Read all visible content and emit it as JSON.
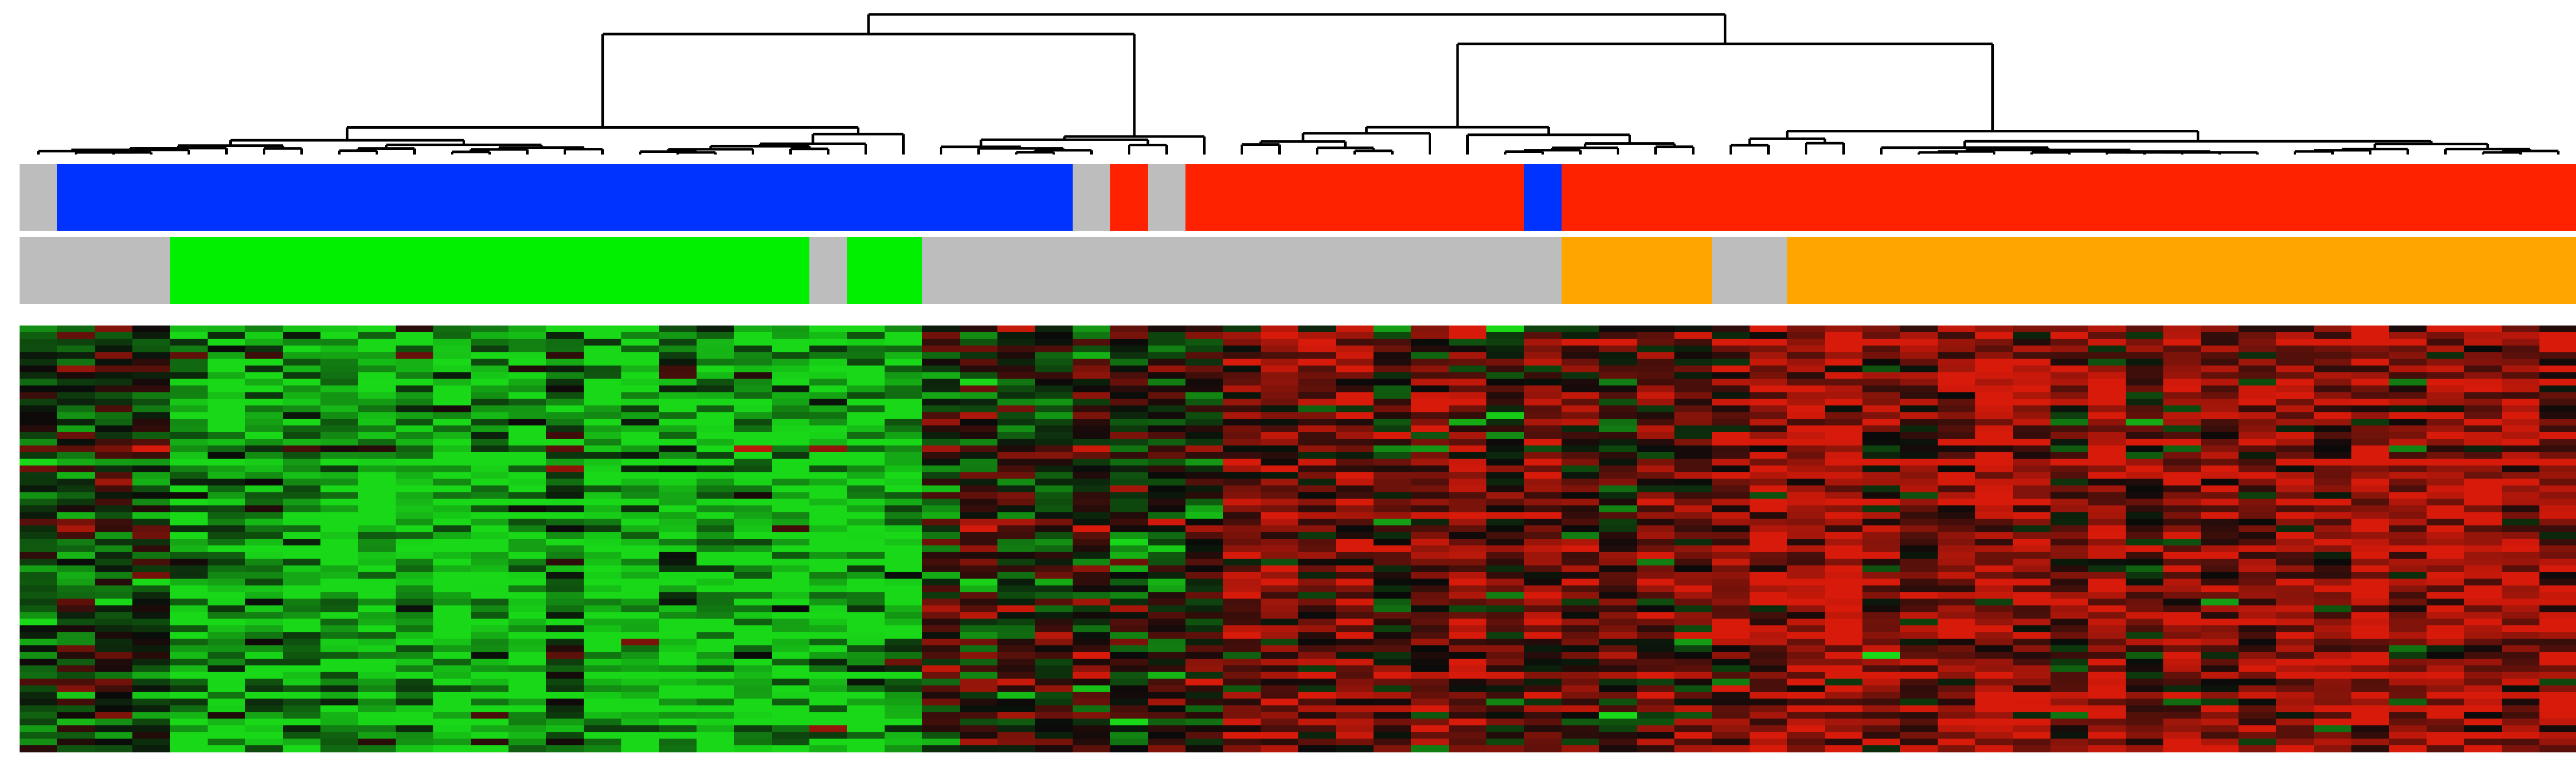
{
  "chart_data": {
    "type": "heatmap",
    "columns": 68,
    "rows": 64,
    "color_scale": {
      "low": "#18d818",
      "mid": "#0a0a0a",
      "high": "#d81a0a"
    },
    "annotation_colors": {
      "blue": "#0033ff",
      "red": "#ff2200",
      "gray": "#bdbdbd",
      "green": "#00f000",
      "orange": "#ffa500"
    },
    "annotation_tracks": [
      {
        "segments": [
          {
            "color": "gray",
            "from": 0,
            "to": 1
          },
          {
            "color": "blue",
            "from": 1,
            "to": 28
          },
          {
            "color": "gray",
            "from": 28,
            "to": 29
          },
          {
            "color": "red",
            "from": 29,
            "to": 30
          },
          {
            "color": "gray",
            "from": 30,
            "to": 31
          },
          {
            "color": "red",
            "from": 31,
            "to": 40
          },
          {
            "color": "blue",
            "from": 40,
            "to": 41
          },
          {
            "color": "red",
            "from": 41,
            "to": 68
          }
        ]
      },
      {
        "segments": [
          {
            "color": "gray",
            "from": 0,
            "to": 4
          },
          {
            "color": "green",
            "from": 4,
            "to": 21
          },
          {
            "color": "gray",
            "from": 21,
            "to": 22
          },
          {
            "color": "green",
            "from": 22,
            "to": 24
          },
          {
            "color": "gray",
            "from": 24,
            "to": 41
          },
          {
            "color": "orange",
            "from": 41,
            "to": 45
          },
          {
            "color": "gray",
            "from": 45,
            "to": 47
          },
          {
            "color": "orange",
            "from": 47,
            "to": 68
          }
        ]
      }
    ],
    "heatmap_blocks": [
      {
        "from": 0,
        "to": 4,
        "mean": -0.3
      },
      {
        "from": 4,
        "to": 24,
        "mean": -0.8
      },
      {
        "from": 24,
        "to": 32,
        "mean": -0.1
      },
      {
        "from": 32,
        "to": 45,
        "mean": 0.35
      },
      {
        "from": 45,
        "to": 68,
        "mean": 0.65
      }
    ],
    "dendrogram": {
      "leaves": 68,
      "clusters": [
        {
          "from": 0,
          "to": 24
        },
        {
          "from": 24,
          "to": 32
        },
        {
          "from": 32,
          "to": 45
        },
        {
          "from": 45,
          "to": 68
        }
      ],
      "merges": [
        {
          "left": [
            0,
            24
          ],
          "right": [
            24,
            32
          ],
          "height": 0.86
        },
        {
          "left": [
            32,
            45
          ],
          "right": [
            45,
            68
          ],
          "height": 0.79
        },
        {
          "left": [
            0,
            32
          ],
          "right": [
            32,
            68
          ],
          "height": 1.0
        }
      ]
    },
    "xlabel": "",
    "ylabel": "",
    "title": ""
  }
}
